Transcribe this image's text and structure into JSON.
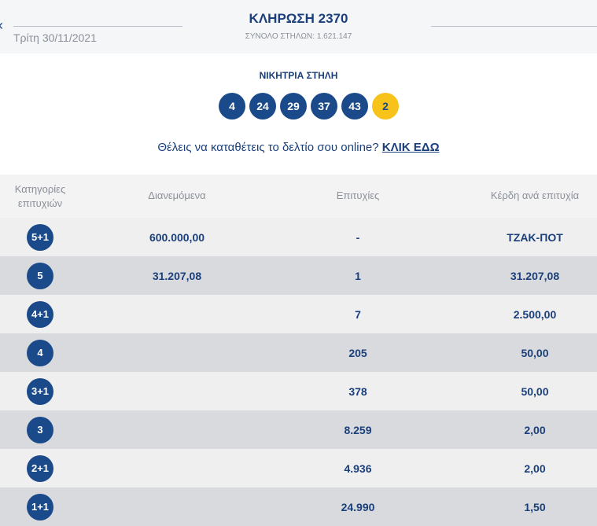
{
  "header": {
    "back_icon": "chevron-left-icon",
    "date": "Τρίτη 30/11/2021",
    "title": "ΚΛΗΡΩΣΗ 2370",
    "total_columns": "ΣΥΝΟΛΟ ΣΤΗΛΩΝ: 1.621.147"
  },
  "winning": {
    "title": "ΝΙΚΗΤΡΙΑ ΣΤΗΛΗ",
    "numbers": [
      "4",
      "24",
      "29",
      "37",
      "43"
    ],
    "bonus": "2",
    "colors": {
      "ball": "#1b4a8a",
      "bonus": "#f7c21a"
    }
  },
  "promo": {
    "text": "Θέλεις να καταθέτεις το δελτίο σου online? ",
    "link": "ΚΛΙΚ ΕΔΩ"
  },
  "table": {
    "headers": [
      "Κατηγορίες επιτυχιών",
      "Διανεμόμενα",
      "Επιτυχίες",
      "Κέρδη ανά επιτυχία"
    ],
    "rows": [
      {
        "cat": "5+1",
        "dist": "600.000,00",
        "wins": "-",
        "prize": "ΤΖΑΚ-ΠΟΤ"
      },
      {
        "cat": "5",
        "dist": "31.207,08",
        "wins": "1",
        "prize": "31.207,08"
      },
      {
        "cat": "4+1",
        "dist": "",
        "wins": "7",
        "prize": "2.500,00"
      },
      {
        "cat": "4",
        "dist": "",
        "wins": "205",
        "prize": "50,00"
      },
      {
        "cat": "3+1",
        "dist": "",
        "wins": "378",
        "prize": "50,00"
      },
      {
        "cat": "3",
        "dist": "",
        "wins": "8.259",
        "prize": "2,00"
      },
      {
        "cat": "2+1",
        "dist": "",
        "wins": "4.936",
        "prize": "2,00"
      },
      {
        "cat": "1+1",
        "dist": "",
        "wins": "24.990",
        "prize": "1,50"
      }
    ]
  }
}
